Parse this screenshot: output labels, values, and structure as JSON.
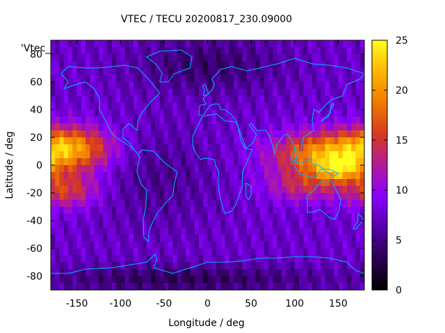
{
  "chart_data": {
    "type": "heatmap",
    "title": "VTEC / TECU 20200817_230.09000",
    "xlabel": "Longitude / deg",
    "ylabel": "Latitude / deg",
    "xlim": [
      -180,
      180
    ],
    "ylim": [
      -90,
      90
    ],
    "x_ticks": [
      -150,
      -100,
      -50,
      0,
      50,
      100,
      150
    ],
    "y_ticks": [
      -80,
      -60,
      -40,
      -20,
      0,
      20,
      40,
      60,
      80
    ],
    "legend_entry": "'Vtec_",
    "colorbar": {
      "range": [
        0,
        25
      ],
      "ticks": [
        0,
        5,
        10,
        15,
        20,
        25
      ],
      "palette": [
        "#000000",
        "#2a0050",
        "#5400a8",
        "#8a00ff",
        "#b21a9a",
        "#d63a20",
        "#f07a00",
        "#ffb600",
        "#ffff20"
      ]
    },
    "overlay": "coastlines",
    "coastline_color": "#00b4ff",
    "tec_features": [
      {
        "region": "background mid-latitudes",
        "approx_value": 7
      },
      {
        "region": "east Pacific equatorial crest",
        "center_lon": -160,
        "center_lat": 10,
        "approx_value": 21
      },
      {
        "region": "south Pacific band",
        "center_lon": -170,
        "center_lat": -20,
        "approx_value": 16
      },
      {
        "region": "south-east Asia equatorial crest",
        "center_lon": 125,
        "center_lat": 5,
        "approx_value": 21
      },
      {
        "region": "western Pacific peak",
        "center_lon": 145,
        "center_lat": -2,
        "approx_value": 24
      },
      {
        "region": "high latitude night side",
        "center_lon": 0,
        "center_lat": 70,
        "approx_value": 3
      },
      {
        "region": "antarctic",
        "center_lon": -30,
        "center_lat": -80,
        "approx_value": 2
      }
    ]
  }
}
